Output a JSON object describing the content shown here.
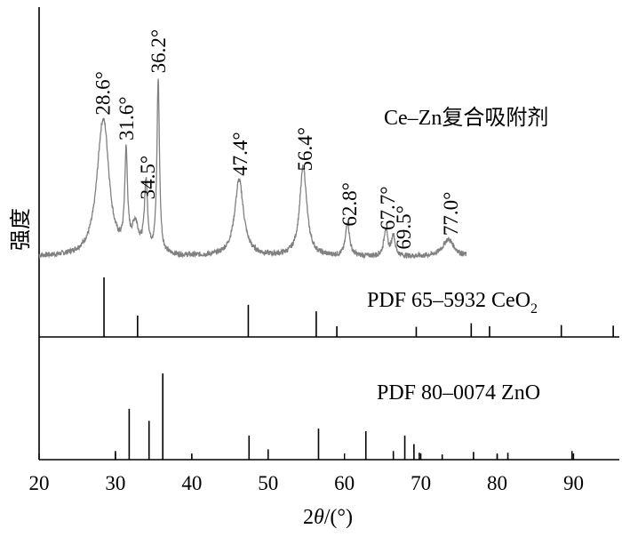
{
  "chart_data": {
    "type": "line",
    "xlabel_prefix": "2",
    "xlabel_symbol": "θ",
    "xlabel_suffix": "/(°)",
    "ylabel": "强度",
    "xlim": [
      20,
      96
    ],
    "xticks": [
      "20",
      "30",
      "40",
      "50",
      "60",
      "70",
      "80",
      "90"
    ],
    "xtick_values": [
      20,
      30,
      40,
      50,
      60,
      70,
      80,
      90
    ],
    "series": [
      {
        "name": "Ce–Zn复合吸附剂",
        "color": "#808080",
        "range": [
          20,
          76
        ],
        "peaks": [
          {
            "x": 28.2,
            "h": 0.56,
            "w": 0.9
          },
          {
            "x": 28.7,
            "h": 0.3,
            "w": 0.7
          },
          {
            "x": 31.4,
            "h": 0.55,
            "w": 0.22
          },
          {
            "x": 32.6,
            "h": 0.16,
            "w": 0.5
          },
          {
            "x": 34.0,
            "h": 0.4,
            "w": 0.25
          },
          {
            "x": 35.6,
            "h": 1.0,
            "w": 0.2
          },
          {
            "x": 46.2,
            "h": 0.44,
            "w": 0.7
          },
          {
            "x": 54.6,
            "h": 0.52,
            "w": 0.55
          },
          {
            "x": 60.4,
            "h": 0.2,
            "w": 0.3
          },
          {
            "x": 65.4,
            "h": 0.16,
            "w": 0.28
          },
          {
            "x": 66.4,
            "h": 0.12,
            "w": 0.28
          },
          {
            "x": 73.6,
            "h": 0.1,
            "w": 0.9
          }
        ],
        "annotations": [
          {
            "x": 28.3,
            "label": "28.6°"
          },
          {
            "x": 31.4,
            "label": "31.6°"
          },
          {
            "x": 34.2,
            "label": "34.5°"
          },
          {
            "x": 35.6,
            "label": "36.2°"
          },
          {
            "x": 46.3,
            "label": "47.4°"
          },
          {
            "x": 54.8,
            "label": "56.4°"
          },
          {
            "x": 60.6,
            "label": "62.8°"
          },
          {
            "x": 65.6,
            "label": "67.7°"
          },
          {
            "x": 67.7,
            "label": "69.5°"
          },
          {
            "x": 73.9,
            "label": "77.0°"
          }
        ]
      },
      {
        "name_prefix": "PDF 65–5932 CeO",
        "name_sub": "2",
        "type": "stick",
        "sticks": [
          {
            "x": 28.5,
            "v": 1.0
          },
          {
            "x": 32.9,
            "v": 0.36
          },
          {
            "x": 47.4,
            "v": 0.54
          },
          {
            "x": 56.3,
            "v": 0.43
          },
          {
            "x": 59.0,
            "v": 0.18
          },
          {
            "x": 69.4,
            "v": 0.17
          },
          {
            "x": 76.6,
            "v": 0.23
          },
          {
            "x": 79.0,
            "v": 0.18
          },
          {
            "x": 88.4,
            "v": 0.2
          },
          {
            "x": 95.2,
            "v": 0.19
          }
        ]
      },
      {
        "name": "PDF 80–0074 ZnO",
        "type": "stick",
        "sticks": [
          {
            "x": 30.0,
            "v": 0.1
          },
          {
            "x": 31.8,
            "v": 0.59
          },
          {
            "x": 34.4,
            "v": 0.45
          },
          {
            "x": 36.2,
            "v": 1.0
          },
          {
            "x": 40.0,
            "v": 0.06
          },
          {
            "x": 47.5,
            "v": 0.28
          },
          {
            "x": 50.0,
            "v": 0.12
          },
          {
            "x": 56.6,
            "v": 0.36
          },
          {
            "x": 62.8,
            "v": 0.33
          },
          {
            "x": 66.4,
            "v": 0.1
          },
          {
            "x": 67.9,
            "v": 0.28
          },
          {
            "x": 69.1,
            "v": 0.18
          },
          {
            "x": 69.8,
            "v": 0.08
          },
          {
            "x": 72.8,
            "v": 0.06
          },
          {
            "x": 76.9,
            "v": 0.09
          },
          {
            "x": 80.0,
            "v": 0.06
          },
          {
            "x": 81.4,
            "v": 0.08
          },
          {
            "x": 89.8,
            "v": 0.1
          }
        ]
      }
    ]
  }
}
